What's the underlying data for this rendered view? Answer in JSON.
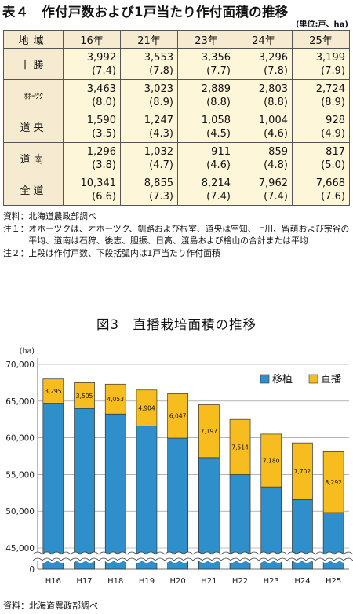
{
  "table4": {
    "title": "表４　作付戸数および1戸当たり作付面積の推移",
    "unit": "(単位:戸、ha)",
    "header": [
      "地域",
      "16年",
      "21年",
      "23年",
      "24年",
      "25年"
    ],
    "rows": [
      {
        "label": "十勝",
        "counts": [
          "3,992",
          "3,553",
          "3,356",
          "3,296",
          "3,199"
        ],
        "areas": [
          "(7.4)",
          "(7.8)",
          "(7.7)",
          "(7.8)",
          "(7.9)"
        ]
      },
      {
        "label": "ｵﾎｰﾂｸ",
        "counts": [
          "3,463",
          "3,023",
          "2,889",
          "2,803",
          "2,724"
        ],
        "areas": [
          "(8.0)",
          "(8.9)",
          "(8.8)",
          "(8.8)",
          "(8.9)"
        ]
      },
      {
        "label": "道央",
        "counts": [
          "1,590",
          "1,247",
          "1,058",
          "1,004",
          "928"
        ],
        "areas": [
          "(3.5)",
          "(4.3)",
          "(4.5)",
          "(4.6)",
          "(4.9)"
        ]
      },
      {
        "label": "道南",
        "counts": [
          "1,296",
          "1,032",
          "911",
          "859",
          "817"
        ],
        "areas": [
          "(3.8)",
          "(4.7)",
          "(4.6)",
          "(4.8)",
          "(5.0)"
        ]
      },
      {
        "label": "全道",
        "counts": [
          "10,341",
          "8,855",
          "8,214",
          "7,962",
          "7,668"
        ],
        "areas": [
          "(6.6)",
          "(7.3)",
          "(7.4)",
          "(7.4)",
          "(7.6)"
        ]
      }
    ],
    "notes": [
      {
        "key": "資料：",
        "text": "北海道農政部調べ"
      },
      {
        "key": "注１：",
        "text": "オホーツクは、オホーツク、釧路および根室、道央は空知、上川、留萌および宗谷の平均、道南は石狩、後志、胆振、日高、渡島および檜山の合計または平均"
      },
      {
        "key": "注２：",
        "text": "上段は作付戸数、下段括弧内は1戸当たり作付面積"
      }
    ]
  },
  "figure3": {
    "title": "図3　直播栽培面積の推移",
    "source": "資料：北海道農政部調べ"
  },
  "chart_data": {
    "type": "bar",
    "stacked": true,
    "categories": [
      "H16",
      "H17",
      "H18",
      "H19",
      "H20",
      "H21",
      "H22",
      "H23",
      "H24",
      "H25"
    ],
    "series": [
      {
        "name": "移植",
        "color": "#2e8fca",
        "values": [
          64705,
          63995,
          63247,
          61596,
          59953,
          57303,
          54986,
          53320,
          51598,
          49808
        ]
      },
      {
        "name": "直播",
        "color": "#f7bd1e",
        "values": [
          3295,
          3505,
          4053,
          4904,
          6047,
          7197,
          7514,
          7180,
          7702,
          8292
        ]
      }
    ],
    "data_labels": [
      "3,295",
      "3,505",
      "4,053",
      "4,904",
      "6,047",
      "7,197",
      "7,514",
      "7,180",
      "7,702",
      "8,292"
    ],
    "ylabel": "(ha)",
    "yticks": [
      "0",
      "45,000",
      "50,000",
      "55,000",
      "60,000",
      "65,000",
      "70,000"
    ],
    "ylim": [
      0,
      70000
    ],
    "axis_break": true,
    "grid": true,
    "legend_position": "top-right"
  }
}
